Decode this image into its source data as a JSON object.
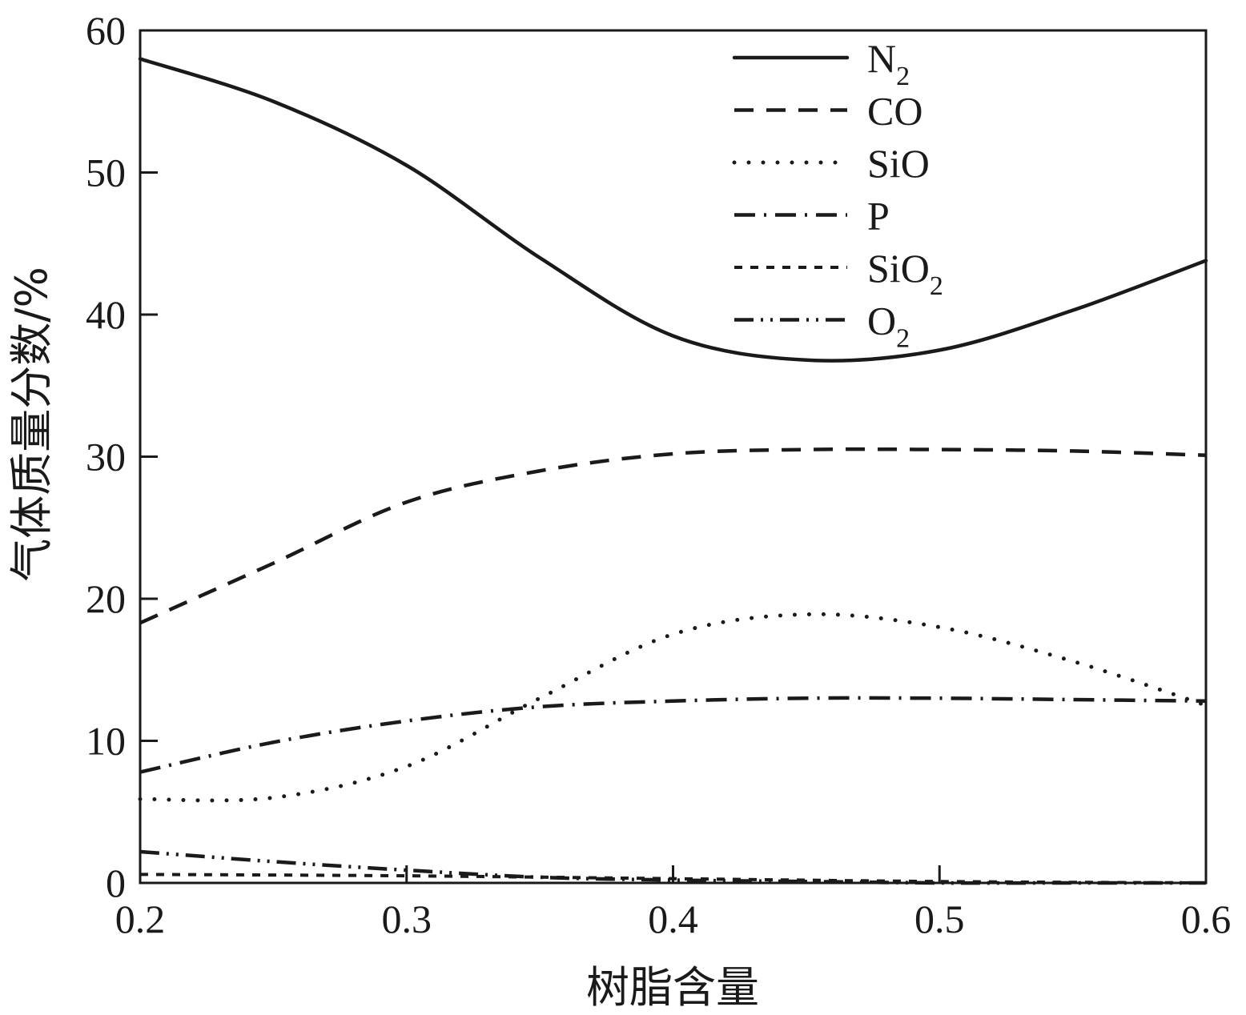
{
  "chart_data": {
    "type": "line",
    "title": "",
    "xlabel": "树脂含量",
    "ylabel": "气体质量分数/%",
    "xlim": [
      0.2,
      0.6
    ],
    "ylim": [
      0,
      60
    ],
    "xticks": [
      "0.2",
      "0.3",
      "0.4",
      "0.5",
      "0.6"
    ],
    "yticks": [
      "0",
      "10",
      "20",
      "30",
      "40",
      "50",
      "60"
    ],
    "legend_position": "top-right",
    "series": [
      {
        "name": "N",
        "subscript": "2",
        "style": "solid",
        "x": [
          0.2,
          0.25,
          0.3,
          0.35,
          0.4,
          0.45,
          0.5,
          0.55,
          0.6
        ],
        "y": [
          58.0,
          55.0,
          50.5,
          44.0,
          38.5,
          36.8,
          37.5,
          40.3,
          43.8
        ]
      },
      {
        "name": "CO",
        "subscript": "",
        "style": "dashed",
        "x": [
          0.2,
          0.25,
          0.3,
          0.35,
          0.4,
          0.45,
          0.5,
          0.55,
          0.6
        ],
        "y": [
          18.3,
          22.5,
          26.8,
          29.0,
          30.2,
          30.5,
          30.5,
          30.4,
          30.1
        ]
      },
      {
        "name": "SiO",
        "subscript": "",
        "style": "dotted",
        "x": [
          0.2,
          0.25,
          0.3,
          0.35,
          0.4,
          0.45,
          0.5,
          0.55,
          0.6
        ],
        "y": [
          5.9,
          6.0,
          8.2,
          13.0,
          17.5,
          18.9,
          18.0,
          15.6,
          12.5
        ]
      },
      {
        "name": "P",
        "subscript": "",
        "style": "dash-dot",
        "x": [
          0.2,
          0.25,
          0.3,
          0.35,
          0.4,
          0.45,
          0.5,
          0.55,
          0.6
        ],
        "y": [
          7.8,
          9.9,
          11.4,
          12.4,
          12.8,
          13.0,
          13.0,
          12.9,
          12.8
        ]
      },
      {
        "name": "SiO",
        "subscript": "2",
        "style": "short-dash",
        "x": [
          0.2,
          0.3,
          0.4,
          0.5,
          0.6
        ],
        "y": [
          0.6,
          0.5,
          0.3,
          0.1,
          0.0
        ]
      },
      {
        "name": "O",
        "subscript": "2",
        "style": "dash-dot-dot",
        "x": [
          0.2,
          0.25,
          0.3,
          0.35,
          0.4,
          0.45,
          0.5,
          0.55,
          0.6
        ],
        "y": [
          2.2,
          1.5,
          0.9,
          0.4,
          0.2,
          0.1,
          0.0,
          0.0,
          0.0
        ]
      }
    ]
  }
}
